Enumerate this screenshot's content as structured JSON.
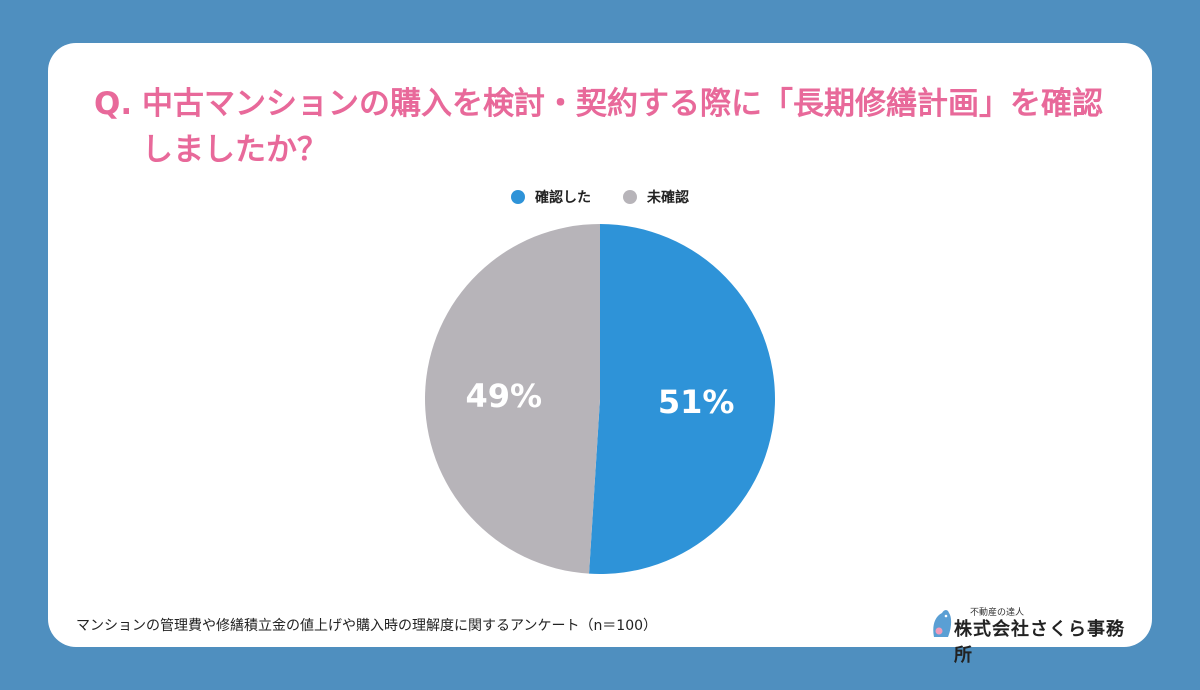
{
  "title": {
    "prefix": "Q.",
    "text": "中古マンションの購入を検討・契約する際に「長期修繕計画」を確認しましたか？"
  },
  "chart_data": {
    "type": "pie",
    "categories": [
      "確認した",
      "未確認"
    ],
    "values": [
      51,
      49
    ],
    "value_labels": [
      "51%",
      "49%"
    ],
    "colors": [
      "#2e93d8",
      "#b7b4b9"
    ],
    "legend_position": "top-center"
  },
  "footnote": "マンションの管理費や修繕積立金の値上げや購入時の理解度に関するアンケート（n＝100）",
  "logo": {
    "tagline": "不動産の達人",
    "name": "株式会社さくら事務所"
  }
}
